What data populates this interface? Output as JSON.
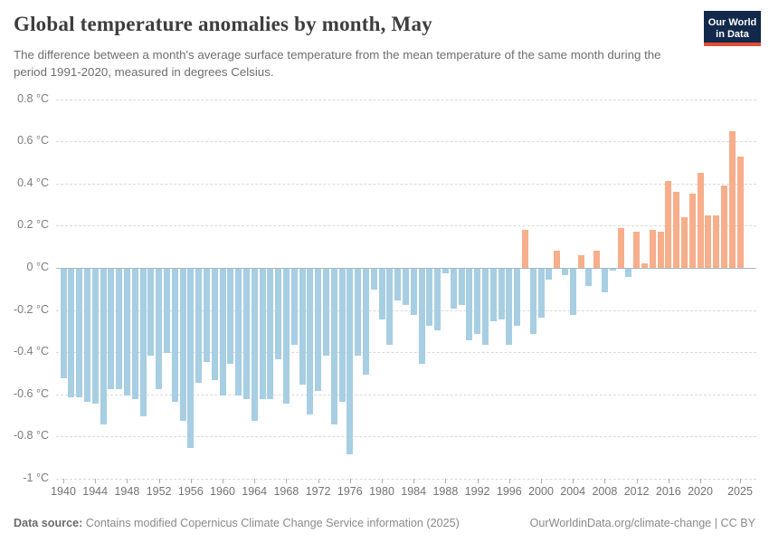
{
  "header": {
    "title": "Global temperature anomalies by month, May",
    "subtitle": "The difference between a month's average surface temperature from the mean temperature of the same month during the period 1991-2020, measured in degrees Celsius.",
    "logo": {
      "line1": "Our World",
      "line2": "in Data"
    }
  },
  "footer": {
    "source_label": "Data source:",
    "source_text": " Contains modified Copernicus Climate Change Service information (2025)",
    "link_text": "OurWorldinData.org/climate-change | CC BY"
  },
  "colors": {
    "positive_bar": "#F6AE8B",
    "negative_bar": "#A7CEE2",
    "gridline": "#DADADA",
    "zero_line": "#A5B8C5",
    "logo_bg": "#12294B",
    "logo_stripe": "#E04E38"
  },
  "chart_data": {
    "type": "bar",
    "title": "Global temperature anomalies by month, May",
    "ylabel": "",
    "xlabel": "",
    "unit": "°C",
    "baseline_period": "1991-2020",
    "ylim": [
      -1,
      0.8
    ],
    "grid": true,
    "x": [
      1940,
      1941,
      1942,
      1943,
      1944,
      1945,
      1946,
      1947,
      1948,
      1949,
      1950,
      1951,
      1952,
      1953,
      1954,
      1955,
      1956,
      1957,
      1958,
      1959,
      1960,
      1961,
      1962,
      1963,
      1964,
      1965,
      1966,
      1967,
      1968,
      1969,
      1970,
      1971,
      1972,
      1973,
      1974,
      1975,
      1976,
      1977,
      1978,
      1979,
      1980,
      1981,
      1982,
      1983,
      1984,
      1985,
      1986,
      1987,
      1988,
      1989,
      1990,
      1991,
      1992,
      1993,
      1994,
      1995,
      1996,
      1997,
      1998,
      1999,
      2000,
      2001,
      2002,
      2003,
      2004,
      2005,
      2006,
      2007,
      2008,
      2009,
      2010,
      2011,
      2012,
      2013,
      2014,
      2015,
      2016,
      2017,
      2018,
      2019,
      2020,
      2021,
      2022,
      2023,
      2024,
      2025
    ],
    "values": [
      -0.52,
      -0.61,
      -0.61,
      -0.63,
      -0.64,
      -0.74,
      -0.57,
      -0.57,
      -0.6,
      -0.62,
      -0.7,
      -0.41,
      -0.57,
      -0.4,
      -0.63,
      -0.72,
      -0.85,
      -0.54,
      -0.44,
      -0.53,
      -0.6,
      -0.45,
      -0.6,
      -0.62,
      -0.72,
      -0.62,
      -0.62,
      -0.43,
      -0.64,
      -0.36,
      -0.55,
      -0.69,
      -0.58,
      -0.41,
      -0.74,
      -0.63,
      -0.88,
      -0.41,
      -0.5,
      -0.1,
      -0.24,
      -0.36,
      -0.15,
      -0.17,
      -0.22,
      -0.45,
      -0.27,
      -0.29,
      -0.02,
      -0.19,
      -0.17,
      -0.34,
      -0.31,
      -0.36,
      -0.25,
      -0.24,
      -0.36,
      -0.27,
      0.18,
      -0.31,
      -0.23,
      -0.05,
      0.08,
      -0.03,
      -0.22,
      0.06,
      -0.08,
      0.08,
      -0.11,
      -0.01,
      0.19,
      -0.04,
      0.17,
      0.02,
      0.18,
      0.17,
      0.41,
      0.36,
      0.24,
      0.35,
      0.45,
      0.25,
      0.25,
      0.39,
      0.65,
      0.53
    ],
    "y_ticks": [
      {
        "value": 0.8,
        "label": "0.8 °C"
      },
      {
        "value": 0.6,
        "label": "0.6 °C"
      },
      {
        "value": 0.4,
        "label": "0.4 °C"
      },
      {
        "value": 0.2,
        "label": "0.2 °C"
      },
      {
        "value": 0,
        "label": "0 °C"
      },
      {
        "value": -0.2,
        "label": "-0.2 °C"
      },
      {
        "value": -0.4,
        "label": "-0.4 °C"
      },
      {
        "value": -0.6,
        "label": "-0.6 °C"
      },
      {
        "value": -0.8,
        "label": "-0.8 °C"
      },
      {
        "value": -1,
        "label": "-1 °C"
      }
    ],
    "x_tick_labels": [
      1940,
      1944,
      1948,
      1952,
      1956,
      1960,
      1964,
      1968,
      1972,
      1976,
      1980,
      1984,
      1988,
      1992,
      1996,
      2000,
      2004,
      2008,
      2012,
      2016,
      2020,
      2025
    ]
  }
}
